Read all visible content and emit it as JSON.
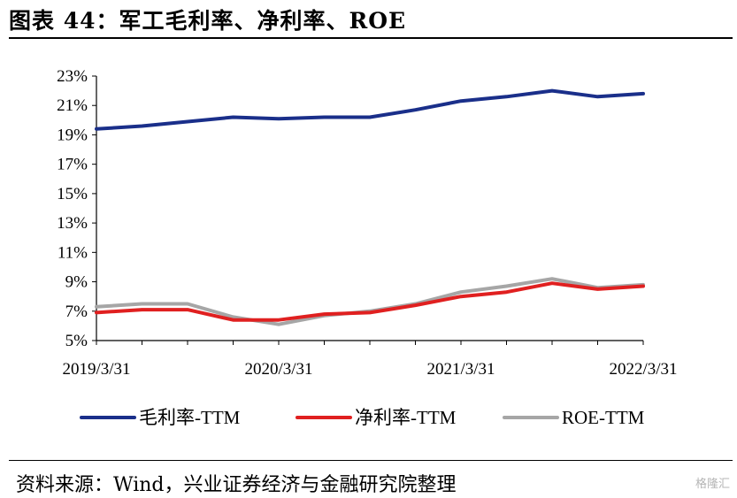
{
  "title": "图表 44：军工毛利率、净利率、ROE",
  "source": "资料来源：Wind，兴业证券经济与金融研究院整理",
  "watermark": "格隆汇",
  "chart_data": {
    "type": "line",
    "x": [
      "2019/3/31",
      "2019/6/30",
      "2019/9/30",
      "2019/12/31",
      "2020/3/31",
      "2020/6/30",
      "2020/9/30",
      "2020/12/31",
      "2021/3/31",
      "2021/6/30",
      "2021/9/30",
      "2021/12/31",
      "2022/3/31"
    ],
    "x_tick_labels": [
      "2019/3/31",
      "2020/3/31",
      "2021/3/31",
      "2022/3/31"
    ],
    "y_tick_labels": [
      "5%",
      "7%",
      "9%",
      "11%",
      "13%",
      "15%",
      "17%",
      "19%",
      "21%",
      "23%"
    ],
    "ylim": [
      5,
      23
    ],
    "y_unit": "%",
    "grid": false,
    "legend_position": "bottom",
    "series": [
      {
        "name": "毛利率-TTM",
        "color": "#1a2f8a",
        "values": [
          19.4,
          19.6,
          19.9,
          20.2,
          20.1,
          20.2,
          20.2,
          20.7,
          21.3,
          21.6,
          22.0,
          21.6,
          21.8
        ]
      },
      {
        "name": "净利率-TTM",
        "color": "#e02020",
        "values": [
          6.9,
          7.1,
          7.1,
          6.4,
          6.4,
          6.8,
          6.9,
          7.4,
          8.0,
          8.3,
          8.9,
          8.5,
          8.7
        ]
      },
      {
        "name": "ROE-TTM",
        "color": "#a6a6a6",
        "values": [
          7.3,
          7.5,
          7.5,
          6.6,
          6.1,
          6.7,
          7.0,
          7.5,
          8.3,
          8.7,
          9.2,
          8.6,
          8.8
        ]
      }
    ]
  }
}
